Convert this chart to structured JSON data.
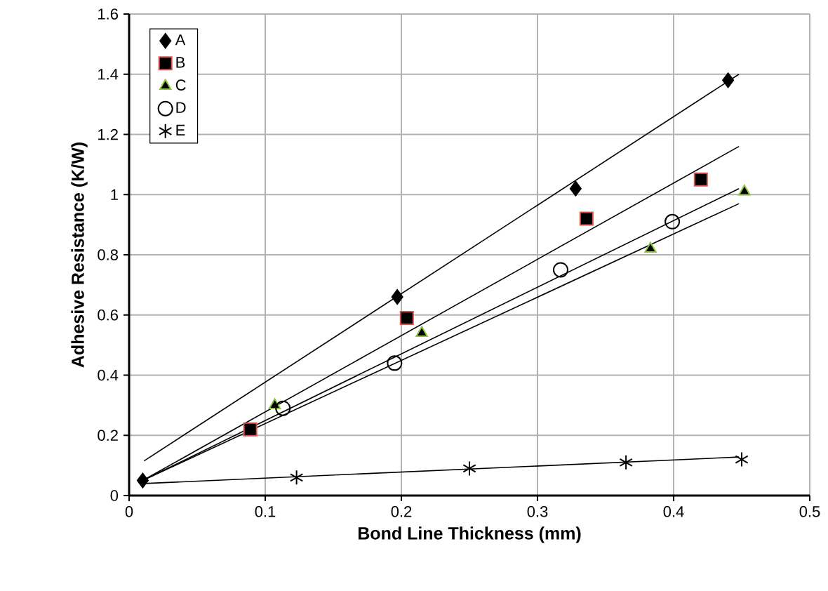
{
  "chart_data": {
    "type": "scatter",
    "xlabel": "Bond Line Thickness (mm)",
    "ylabel": "Adhesive Resistance (K/W)",
    "xlim": [
      0,
      0.5
    ],
    "ylim": [
      0,
      1.6
    ],
    "xticks": [
      0,
      0.1,
      0.2,
      0.3,
      0.4,
      0.5
    ],
    "yticks": [
      0,
      0.2,
      0.4,
      0.6,
      0.8,
      1,
      1.2,
      1.4,
      1.6
    ],
    "grid": true,
    "legend": "top left",
    "series": [
      {
        "name": "A",
        "color": "#000000",
        "marker": "diamond",
        "x": [
          0.01,
          0.197,
          0.328,
          0.44
        ],
        "values": [
          0.05,
          0.66,
          1.02,
          1.38
        ]
      },
      {
        "name": "B",
        "color": "#d9534f",
        "marker": "square",
        "x": [
          0.089,
          0.204,
          0.336,
          0.42
        ],
        "values": [
          0.22,
          0.59,
          0.92,
          1.05
        ]
      },
      {
        "name": "C",
        "color": "#8dc63f",
        "marker": "triangle",
        "x": [
          0.107,
          0.215,
          0.383,
          0.452
        ],
        "values": [
          0.3,
          0.54,
          0.82,
          1.01
        ]
      },
      {
        "name": "D",
        "color": "#000000",
        "marker": "circle",
        "x": [
          0.113,
          0.195,
          0.317,
          0.399
        ],
        "values": [
          0.29,
          0.44,
          0.75,
          0.91
        ]
      },
      {
        "name": "E",
        "color": "#000000",
        "marker": "cross",
        "x": [
          0.123,
          0.25,
          0.365,
          0.45
        ],
        "values": [
          0.06,
          0.09,
          0.11,
          0.12
        ]
      },
      {
        "type": "line",
        "color": "#000000",
        "marker": "none",
        "x": [
          0.011,
          0.448
        ],
        "values": [
          0.115,
          1.4
        ]
      },
      {
        "type": "line",
        "color": "#000000",
        "marker": "none",
        "x": [
          0.01,
          0.448
        ],
        "values": [
          0.05,
          1.16
        ]
      },
      {
        "type": "line",
        "color": "#000000",
        "marker": "none",
        "x": [
          0.01,
          0.448
        ],
        "values": [
          0.05,
          1.02
        ]
      },
      {
        "type": "line",
        "color": "#000000",
        "marker": "none",
        "x": [
          0.01,
          0.448
        ],
        "values": [
          0.05,
          0.97
        ]
      },
      {
        "type": "line",
        "color": "#000000",
        "marker": "none",
        "x": [
          0.011,
          0.448
        ],
        "values": [
          0.04,
          0.128
        ]
      }
    ]
  }
}
